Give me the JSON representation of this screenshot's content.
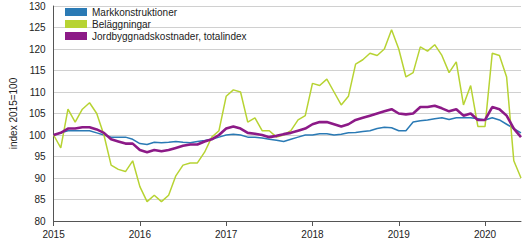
{
  "chart_data": {
    "type": "line",
    "y_label": "index 2015=100",
    "categories": [
      "2015",
      null,
      null,
      null,
      null,
      null,
      null,
      null,
      null,
      null,
      null,
      null,
      "2016",
      null,
      null,
      null,
      null,
      null,
      null,
      null,
      null,
      null,
      null,
      null,
      "2017",
      null,
      null,
      null,
      null,
      null,
      null,
      null,
      null,
      null,
      null,
      null,
      "2018",
      null,
      null,
      null,
      null,
      null,
      null,
      null,
      null,
      null,
      null,
      null,
      "2019",
      null,
      null,
      null,
      null,
      null,
      null,
      null,
      null,
      null,
      null,
      null,
      "2020",
      null,
      null,
      null,
      null,
      null
    ],
    "series": [
      {
        "name": "Markkonstruktioner",
        "color": "#2a7ab5",
        "values": [
          100,
          100.5,
          101,
          101,
          101,
          101,
          100.5,
          100,
          99.5,
          99.5,
          99.5,
          99,
          98,
          97.8,
          98.3,
          98.2,
          98.3,
          98.5,
          98.3,
          98.2,
          98.5,
          98.7,
          99,
          99.5,
          100,
          100.2,
          100,
          99.5,
          99.5,
          99.3,
          99,
          98.8,
          98.5,
          99,
          99.5,
          100,
          100,
          100.3,
          100.3,
          100,
          100.2,
          100.5,
          100.6,
          100.8,
          101,
          101.5,
          101.8,
          101.7,
          101,
          101,
          103,
          103.3,
          103.5,
          103.8,
          104,
          103.6,
          104,
          104,
          104,
          103.8,
          103.5,
          104,
          103.5,
          102.5,
          101.5,
          100.5
        ]
      },
      {
        "name": "Beläggningar",
        "color": "#b7d333",
        "values": [
          100,
          97,
          106,
          103,
          106,
          107.5,
          105,
          100,
          93,
          92,
          91.5,
          94,
          88,
          84.5,
          86,
          84.5,
          86,
          90.5,
          93,
          93.5,
          93.5,
          96,
          99.5,
          101,
          109,
          110.5,
          110,
          103,
          104,
          101,
          101,
          99.5,
          100,
          101,
          103.5,
          104.5,
          112,
          111.5,
          113,
          110,
          107,
          109,
          116.5,
          117.5,
          119,
          118.5,
          120,
          124.5,
          120,
          113.5,
          114.5,
          120.5,
          119.5,
          121,
          118.5,
          114.5,
          117,
          107,
          111.5,
          102,
          102,
          119,
          118.5,
          113.5,
          94,
          90
        ]
      },
      {
        "name": "Jordbyggnadskostnader, totalindex",
        "color": "#8c1a87",
        "values": [
          100,
          100.5,
          101.5,
          101.5,
          101.8,
          101.8,
          101.3,
          100.5,
          99,
          98.5,
          98,
          98,
          96.5,
          96,
          96.5,
          96.2,
          96.5,
          97,
          97.5,
          97.8,
          97.8,
          98.5,
          99,
          100,
          101.5,
          102,
          101.5,
          100.5,
          100.3,
          100,
          99.5,
          99.8,
          100.2,
          100.5,
          101,
          101.5,
          102.5,
          103,
          103,
          102.5,
          102,
          102.5,
          103.5,
          104,
          104.5,
          105,
          105.5,
          106,
          105,
          104.8,
          105,
          106.5,
          106.5,
          106.8,
          106.2,
          105.5,
          106,
          104.5,
          105,
          103.5,
          103.5,
          106.5,
          106,
          104.5,
          101.5,
          99.5
        ]
      }
    ],
    "ylim": [
      80,
      130
    ],
    "yticks": [
      80,
      85,
      90,
      95,
      100,
      105,
      110,
      115,
      120,
      125,
      130
    ],
    "grid": true,
    "legend": "top-left"
  }
}
